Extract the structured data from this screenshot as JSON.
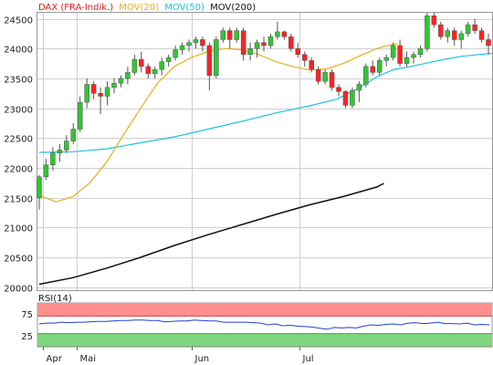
{
  "chart_data": [
    {
      "type": "candlestick",
      "legend": [
        {
          "label": "DAX (FRA-Indik.)",
          "color": "#e02020"
        },
        {
          "label": "MOV(20)",
          "color": "#e8b020"
        },
        {
          "label": "MOV(50)",
          "color": "#20c0e0"
        },
        {
          "label": "MOV(200)",
          "color": "#111111"
        }
      ],
      "ylim": [
        19950,
        24600
      ],
      "yticks": [
        20000,
        20500,
        21000,
        21500,
        22000,
        22500,
        23000,
        23500,
        24000,
        24500
      ],
      "xticks": [
        {
          "label": "Apr",
          "index": 1
        },
        {
          "label": "Mai",
          "index": 11
        },
        {
          "label": "Jun",
          "index": 45
        },
        {
          "label": "Jul",
          "index": 77
        }
      ],
      "grid": true,
      "colors": {
        "up": "#2ec82e",
        "down": "#ff2222"
      },
      "candles": [
        [
          21500,
          21880,
          21300,
          21850
        ],
        [
          21850,
          22150,
          21800,
          22050
        ],
        [
          22050,
          22350,
          21950,
          22250
        ],
        [
          22250,
          22400,
          22100,
          22300
        ],
        [
          22300,
          22550,
          22250,
          22450
        ],
        [
          22450,
          22750,
          22400,
          22650
        ],
        [
          22650,
          23200,
          22600,
          23100
        ],
        [
          23100,
          23500,
          23000,
          23400
        ],
        [
          23400,
          23450,
          23150,
          23250
        ],
        [
          23250,
          23350,
          22900,
          23200
        ],
        [
          23200,
          23450,
          23050,
          23350
        ],
        [
          23350,
          23500,
          23250,
          23420
        ],
        [
          23420,
          23550,
          23350,
          23500
        ],
        [
          23500,
          23700,
          23400,
          23600
        ],
        [
          23600,
          23900,
          23550,
          23820
        ],
        [
          23820,
          23950,
          23600,
          23700
        ],
        [
          23700,
          23750,
          23500,
          23580
        ],
        [
          23580,
          23700,
          23500,
          23650
        ],
        [
          23650,
          23850,
          23550,
          23780
        ],
        [
          23780,
          23900,
          23700,
          23850
        ],
        [
          23850,
          24050,
          23800,
          23980
        ],
        [
          23980,
          24100,
          23900,
          24050
        ],
        [
          24050,
          24150,
          23950,
          24100
        ],
        [
          24100,
          24200,
          24000,
          24150
        ],
        [
          24150,
          24200,
          23950,
          24050
        ],
        [
          24050,
          24100,
          23300,
          23550
        ],
        [
          23550,
          24200,
          23500,
          24150
        ],
        [
          24150,
          24350,
          24100,
          24300
        ],
        [
          24300,
          24350,
          24000,
          24150
        ],
        [
          24150,
          24350,
          24100,
          24300
        ],
        [
          24300,
          24350,
          23800,
          23900
        ],
        [
          23900,
          24100,
          23800,
          24000
        ],
        [
          24000,
          24150,
          23850,
          24100
        ],
        [
          24100,
          24200,
          23950,
          24050
        ],
        [
          24050,
          24250,
          24000,
          24200
        ],
        [
          24200,
          24450,
          24150,
          24280
        ],
        [
          24280,
          24300,
          24150,
          24200
        ],
        [
          24200,
          24250,
          23950,
          24000
        ],
        [
          24000,
          24100,
          23850,
          23900
        ],
        [
          23900,
          23950,
          23700,
          23800
        ],
        [
          23800,
          23850,
          23600,
          23650
        ],
        [
          23650,
          23700,
          23400,
          23450
        ],
        [
          23450,
          23650,
          23400,
          23600
        ],
        [
          23600,
          23650,
          23300,
          23350
        ],
        [
          23350,
          23400,
          23200,
          23280
        ],
        [
          23280,
          23300,
          23000,
          23050
        ],
        [
          23050,
          23350,
          23000,
          23300
        ],
        [
          23300,
          23450,
          23100,
          23400
        ],
        [
          23400,
          23750,
          23350,
          23700
        ],
        [
          23700,
          23800,
          23550,
          23600
        ],
        [
          23600,
          23850,
          23550,
          23800
        ],
        [
          23800,
          23900,
          23700,
          23850
        ],
        [
          23850,
          24100,
          23800,
          24050
        ],
        [
          24050,
          24150,
          23700,
          23750
        ],
        [
          23750,
          23950,
          23700,
          23850
        ],
        [
          23850,
          23950,
          23750,
          23900
        ],
        [
          23900,
          24050,
          23850,
          24000
        ],
        [
          24000,
          24600,
          23950,
          24550
        ],
        [
          24550,
          24600,
          24350,
          24400
        ],
        [
          24400,
          24450,
          24150,
          24200
        ],
        [
          24200,
          24350,
          24100,
          24300
        ],
        [
          24300,
          24350,
          24050,
          24150
        ],
        [
          24150,
          24300,
          24000,
          24250
        ],
        [
          24250,
          24450,
          24200,
          24400
        ],
        [
          24400,
          24500,
          24250,
          24300
        ],
        [
          24300,
          24350,
          24100,
          24150
        ],
        [
          24150,
          24250,
          23900,
          24050
        ]
      ],
      "ma20": [
        [
          0,
          21540
        ],
        [
          5,
          21430
        ],
        [
          10,
          21520
        ],
        [
          15,
          21750
        ],
        [
          20,
          22100
        ],
        [
          25,
          22560
        ],
        [
          30,
          23000
        ],
        [
          35,
          23420
        ],
        [
          40,
          23700
        ],
        [
          45,
          23850
        ],
        [
          50,
          23950
        ],
        [
          55,
          24000
        ],
        [
          60,
          23980
        ],
        [
          65,
          23900
        ],
        [
          70,
          23780
        ],
        [
          75,
          23700
        ],
        [
          80,
          23640
        ],
        [
          85,
          23660
        ],
        [
          90,
          23750
        ],
        [
          95,
          23880
        ],
        [
          100,
          24000
        ],
        [
          103,
          24050
        ],
        [
          106,
          24080
        ]
      ],
      "ma50": [
        [
          0,
          22260
        ],
        [
          10,
          22270
        ],
        [
          20,
          22320
        ],
        [
          30,
          22420
        ],
        [
          40,
          22520
        ],
        [
          50,
          22650
        ],
        [
          60,
          22780
        ],
        [
          70,
          22920
        ],
        [
          80,
          23040
        ],
        [
          88,
          23150
        ],
        [
          95,
          23350
        ],
        [
          100,
          23530
        ],
        [
          105,
          23650
        ],
        [
          110,
          23700
        ],
        [
          115,
          23760
        ],
        [
          120,
          23820
        ],
        [
          125,
          23870
        ],
        [
          130,
          23900
        ],
        [
          134,
          23920
        ]
      ],
      "ma200": [
        [
          0,
          20050
        ],
        [
          10,
          20160
        ],
        [
          20,
          20320
        ],
        [
          30,
          20500
        ],
        [
          40,
          20700
        ],
        [
          50,
          20880
        ],
        [
          60,
          21050
        ],
        [
          70,
          21220
        ],
        [
          80,
          21380
        ],
        [
          90,
          21520
        ],
        [
          95,
          21600
        ],
        [
          100,
          21680
        ],
        [
          102,
          21740
        ]
      ]
    },
    {
      "type": "line",
      "title": "RSI(14)",
      "ylim": [
        0,
        100
      ],
      "yticks": [
        25,
        75
      ],
      "overbought": 70,
      "oversold": 30,
      "bands": {
        "overbought_color": "#ff8f8f",
        "oversold_color": "#7ed67e"
      },
      "line_color": "#2040d0",
      "values": [
        52,
        54,
        54,
        56,
        55,
        56,
        56,
        57,
        58,
        58,
        59,
        60,
        60,
        61,
        61,
        60,
        60,
        57,
        58,
        59,
        59,
        61,
        60,
        59,
        59,
        56,
        56,
        56,
        56,
        55,
        54,
        50,
        52,
        48,
        49,
        47,
        46,
        45,
        42,
        40,
        44,
        43,
        44,
        43,
        47,
        50,
        49,
        51,
        52,
        50,
        54,
        55,
        53,
        54,
        56,
        53,
        53,
        52,
        54,
        50,
        51,
        50
      ]
    }
  ]
}
